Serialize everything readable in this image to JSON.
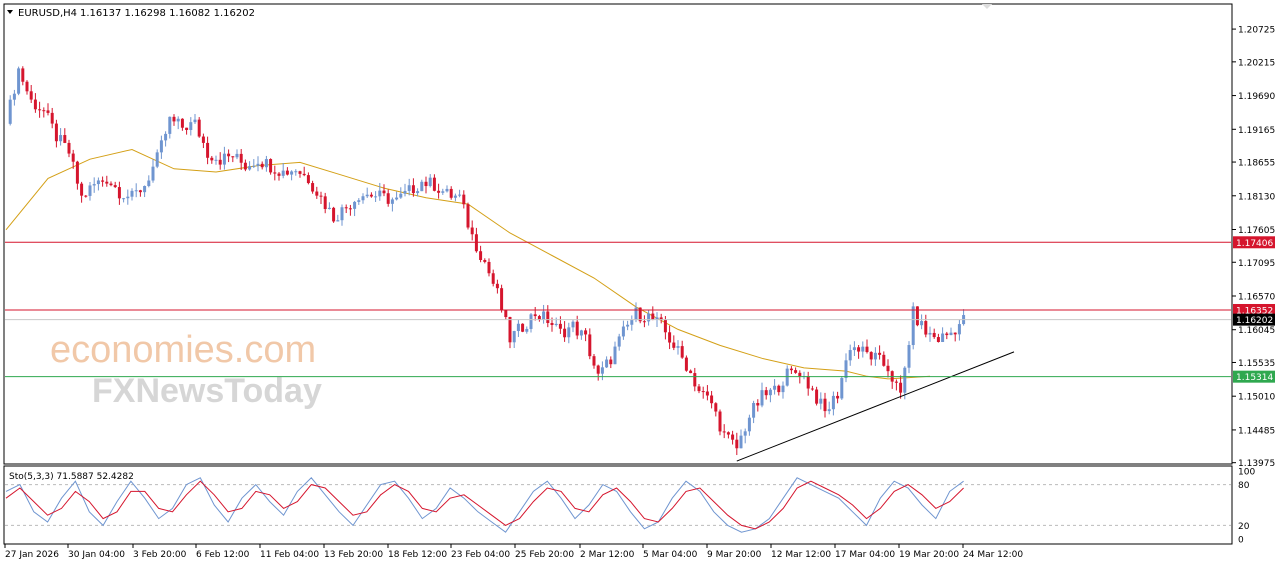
{
  "header": {
    "symbol": "EURUSD,H4",
    "ohlc": "1.16137 1.16298 1.16082 1.16202"
  },
  "watermark": {
    "line1": "economies.com",
    "line2": "FXNewsToday"
  },
  "colors": {
    "bull": "#6f95d0",
    "bear": "#d5152d",
    "ma": "#d4a017",
    "resistance": "#d5152d",
    "support": "#2fa84f",
    "trendline": "#000000",
    "stoch_main": "#6f95d0",
    "stoch_signal": "#d5152d"
  },
  "chart_data": [
    {
      "type": "candlestick",
      "title": "EURUSD,H4",
      "timeframe": "H4",
      "ylim": [
        1.1397,
        1.211
      ],
      "yticks": [
        "1.20725",
        "1.20215",
        "1.19690",
        "1.19165",
        "1.18655",
        "1.18130",
        "1.17605",
        "1.17095",
        "1.16570",
        "1.16045",
        "1.15535",
        "1.15010",
        "1.14485",
        "1.13975"
      ],
      "xticks": [
        "27 Jan 2026",
        "30 Jan 04:00",
        "3 Feb 20:00",
        "6 Feb 12:00",
        "11 Feb 04:00",
        "13 Feb 20:00",
        "18 Feb 12:00",
        "23 Feb 04:00",
        "25 Feb 20:00",
        "2 Mar 12:00",
        "5 Mar 04:00",
        "9 Mar 20:00",
        "12 Mar 12:00",
        "17 Mar 04:00",
        "19 Mar 20:00",
        "24 Mar 12:00"
      ],
      "close_path": [
        [
          0,
          1.1925
        ],
        [
          3,
          1.201
        ],
        [
          6,
          1.196
        ],
        [
          9,
          1.1945
        ],
        [
          12,
          1.1905
        ],
        [
          15,
          1.188
        ],
        [
          18,
          1.181
        ],
        [
          21,
          1.183
        ],
        [
          24,
          1.184
        ],
        [
          27,
          1.182
        ],
        [
          30,
          1.181
        ],
        [
          33,
          1.183
        ],
        [
          36,
          1.187
        ],
        [
          39,
          1.193
        ],
        [
          42,
          1.192
        ],
        [
          45,
          1.1925
        ],
        [
          48,
          1.188
        ],
        [
          51,
          1.187
        ],
        [
          54,
          1.1875
        ],
        [
          57,
          1.186
        ],
        [
          60,
          1.187
        ],
        [
          63,
          1.186
        ],
        [
          66,
          1.185
        ],
        [
          69,
          1.1855
        ],
        [
          72,
          1.184
        ],
        [
          75,
          1.181
        ],
        [
          78,
          1.178
        ],
        [
          81,
          1.1795
        ],
        [
          84,
          1.1815
        ],
        [
          87,
          1.1815
        ],
        [
          90,
          1.181
        ],
        [
          93,
          1.1805
        ],
        [
          96,
          1.182
        ],
        [
          99,
          1.1835
        ],
        [
          102,
          1.183
        ],
        [
          105,
          1.1815
        ],
        [
          108,
          1.181
        ],
        [
          111,
          1.175
        ],
        [
          114,
          1.171
        ],
        [
          117,
          1.166
        ],
        [
          120,
          1.159
        ],
        [
          123,
          1.161
        ],
        [
          126,
          1.163
        ],
        [
          129,
          1.162
        ],
        [
          132,
          1.16
        ],
        [
          135,
          1.161
        ],
        [
          138,
          1.159
        ],
        [
          141,
          1.153
        ],
        [
          144,
          1.156
        ],
        [
          147,
          1.16
        ],
        [
          150,
          1.163
        ],
        [
          153,
          1.1625
        ],
        [
          156,
          1.161
        ],
        [
          159,
          1.158
        ],
        [
          162,
          1.155
        ],
        [
          165,
          1.151
        ],
        [
          168,
          1.149
        ],
        [
          171,
          1.144
        ],
        [
          174,
          1.142
        ],
        [
          177,
          1.147
        ],
        [
          180,
          1.15
        ],
        [
          183,
          1.151
        ],
        [
          186,
          1.1535
        ],
        [
          189,
          1.154
        ],
        [
          192,
          1.151
        ],
        [
          195,
          1.1475
        ],
        [
          198,
          1.1505
        ],
        [
          201,
          1.158
        ],
        [
          204,
          1.157
        ],
        [
          207,
          1.156
        ],
        [
          210,
          1.1545
        ],
        [
          213,
          1.15
        ],
        [
          216,
          1.163
        ],
        [
          219,
          1.16
        ],
        [
          222,
          1.159
        ],
        [
          225,
          1.16
        ],
        [
          228,
          1.162
        ]
      ],
      "moving_average": [
        [
          0,
          1.176
        ],
        [
          10,
          1.184
        ],
        [
          20,
          1.187
        ],
        [
          30,
          1.1885
        ],
        [
          40,
          1.1855
        ],
        [
          50,
          1.185
        ],
        [
          60,
          1.186
        ],
        [
          70,
          1.1865
        ],
        [
          80,
          1.1845
        ],
        [
          90,
          1.1825
        ],
        [
          100,
          1.181
        ],
        [
          110,
          1.18
        ],
        [
          120,
          1.1755
        ],
        [
          130,
          1.172
        ],
        [
          140,
          1.1685
        ],
        [
          150,
          1.164
        ],
        [
          160,
          1.1605
        ],
        [
          170,
          1.158
        ],
        [
          180,
          1.156
        ],
        [
          190,
          1.1545
        ],
        [
          200,
          1.154
        ],
        [
          205,
          1.1532
        ],
        [
          210,
          1.1528
        ],
        [
          215,
          1.153
        ],
        [
          220,
          1.1532
        ]
      ],
      "horizontal_levels": [
        {
          "label": "1.17406",
          "value": 1.17406,
          "role": "resistance"
        },
        {
          "label": "1.16352",
          "value": 1.16352,
          "role": "resistance"
        },
        {
          "label": "1.16202",
          "value": 1.16202,
          "role": "current"
        },
        {
          "label": "1.15314",
          "value": 1.15314,
          "role": "support"
        }
      ],
      "trendline": [
        [
          174,
          1.14
        ],
        [
          240,
          1.157
        ]
      ]
    },
    {
      "type": "line",
      "title": "Sto(5,3,3) 71.5887 52.4282",
      "ylim": [
        0,
        100
      ],
      "yticks": [
        "100",
        "80",
        "20",
        "0"
      ],
      "levels": [
        80,
        20
      ],
      "series": [
        {
          "name": "main",
          "values": [
            70,
            80,
            40,
            25,
            60,
            85,
            40,
            20,
            55,
            85,
            60,
            30,
            45,
            80,
            90,
            50,
            25,
            60,
            80,
            55,
            35,
            70,
            90,
            65,
            40,
            20,
            50,
            80,
            85,
            60,
            30,
            45,
            75,
            60,
            40,
            25,
            10,
            40,
            70,
            85,
            60,
            30,
            50,
            80,
            70,
            40,
            15,
            25,
            60,
            85,
            70,
            40,
            20,
            10,
            15,
            30,
            60,
            90,
            80,
            70,
            60,
            40,
            20,
            60,
            85,
            75,
            50,
            30,
            70,
            85
          ]
        },
        {
          "name": "signal",
          "values": [
            60,
            75,
            55,
            35,
            45,
            70,
            55,
            30,
            40,
            70,
            70,
            45,
            40,
            65,
            85,
            65,
            40,
            45,
            70,
            65,
            45,
            55,
            80,
            75,
            55,
            35,
            40,
            65,
            80,
            70,
            45,
            40,
            60,
            65,
            50,
            35,
            20,
            30,
            55,
            75,
            70,
            45,
            40,
            65,
            75,
            55,
            30,
            25,
            45,
            70,
            75,
            55,
            35,
            20,
            15,
            25,
            45,
            75,
            85,
            75,
            65,
            50,
            30,
            45,
            70,
            80,
            65,
            45,
            55,
            75
          ]
        }
      ]
    }
  ]
}
